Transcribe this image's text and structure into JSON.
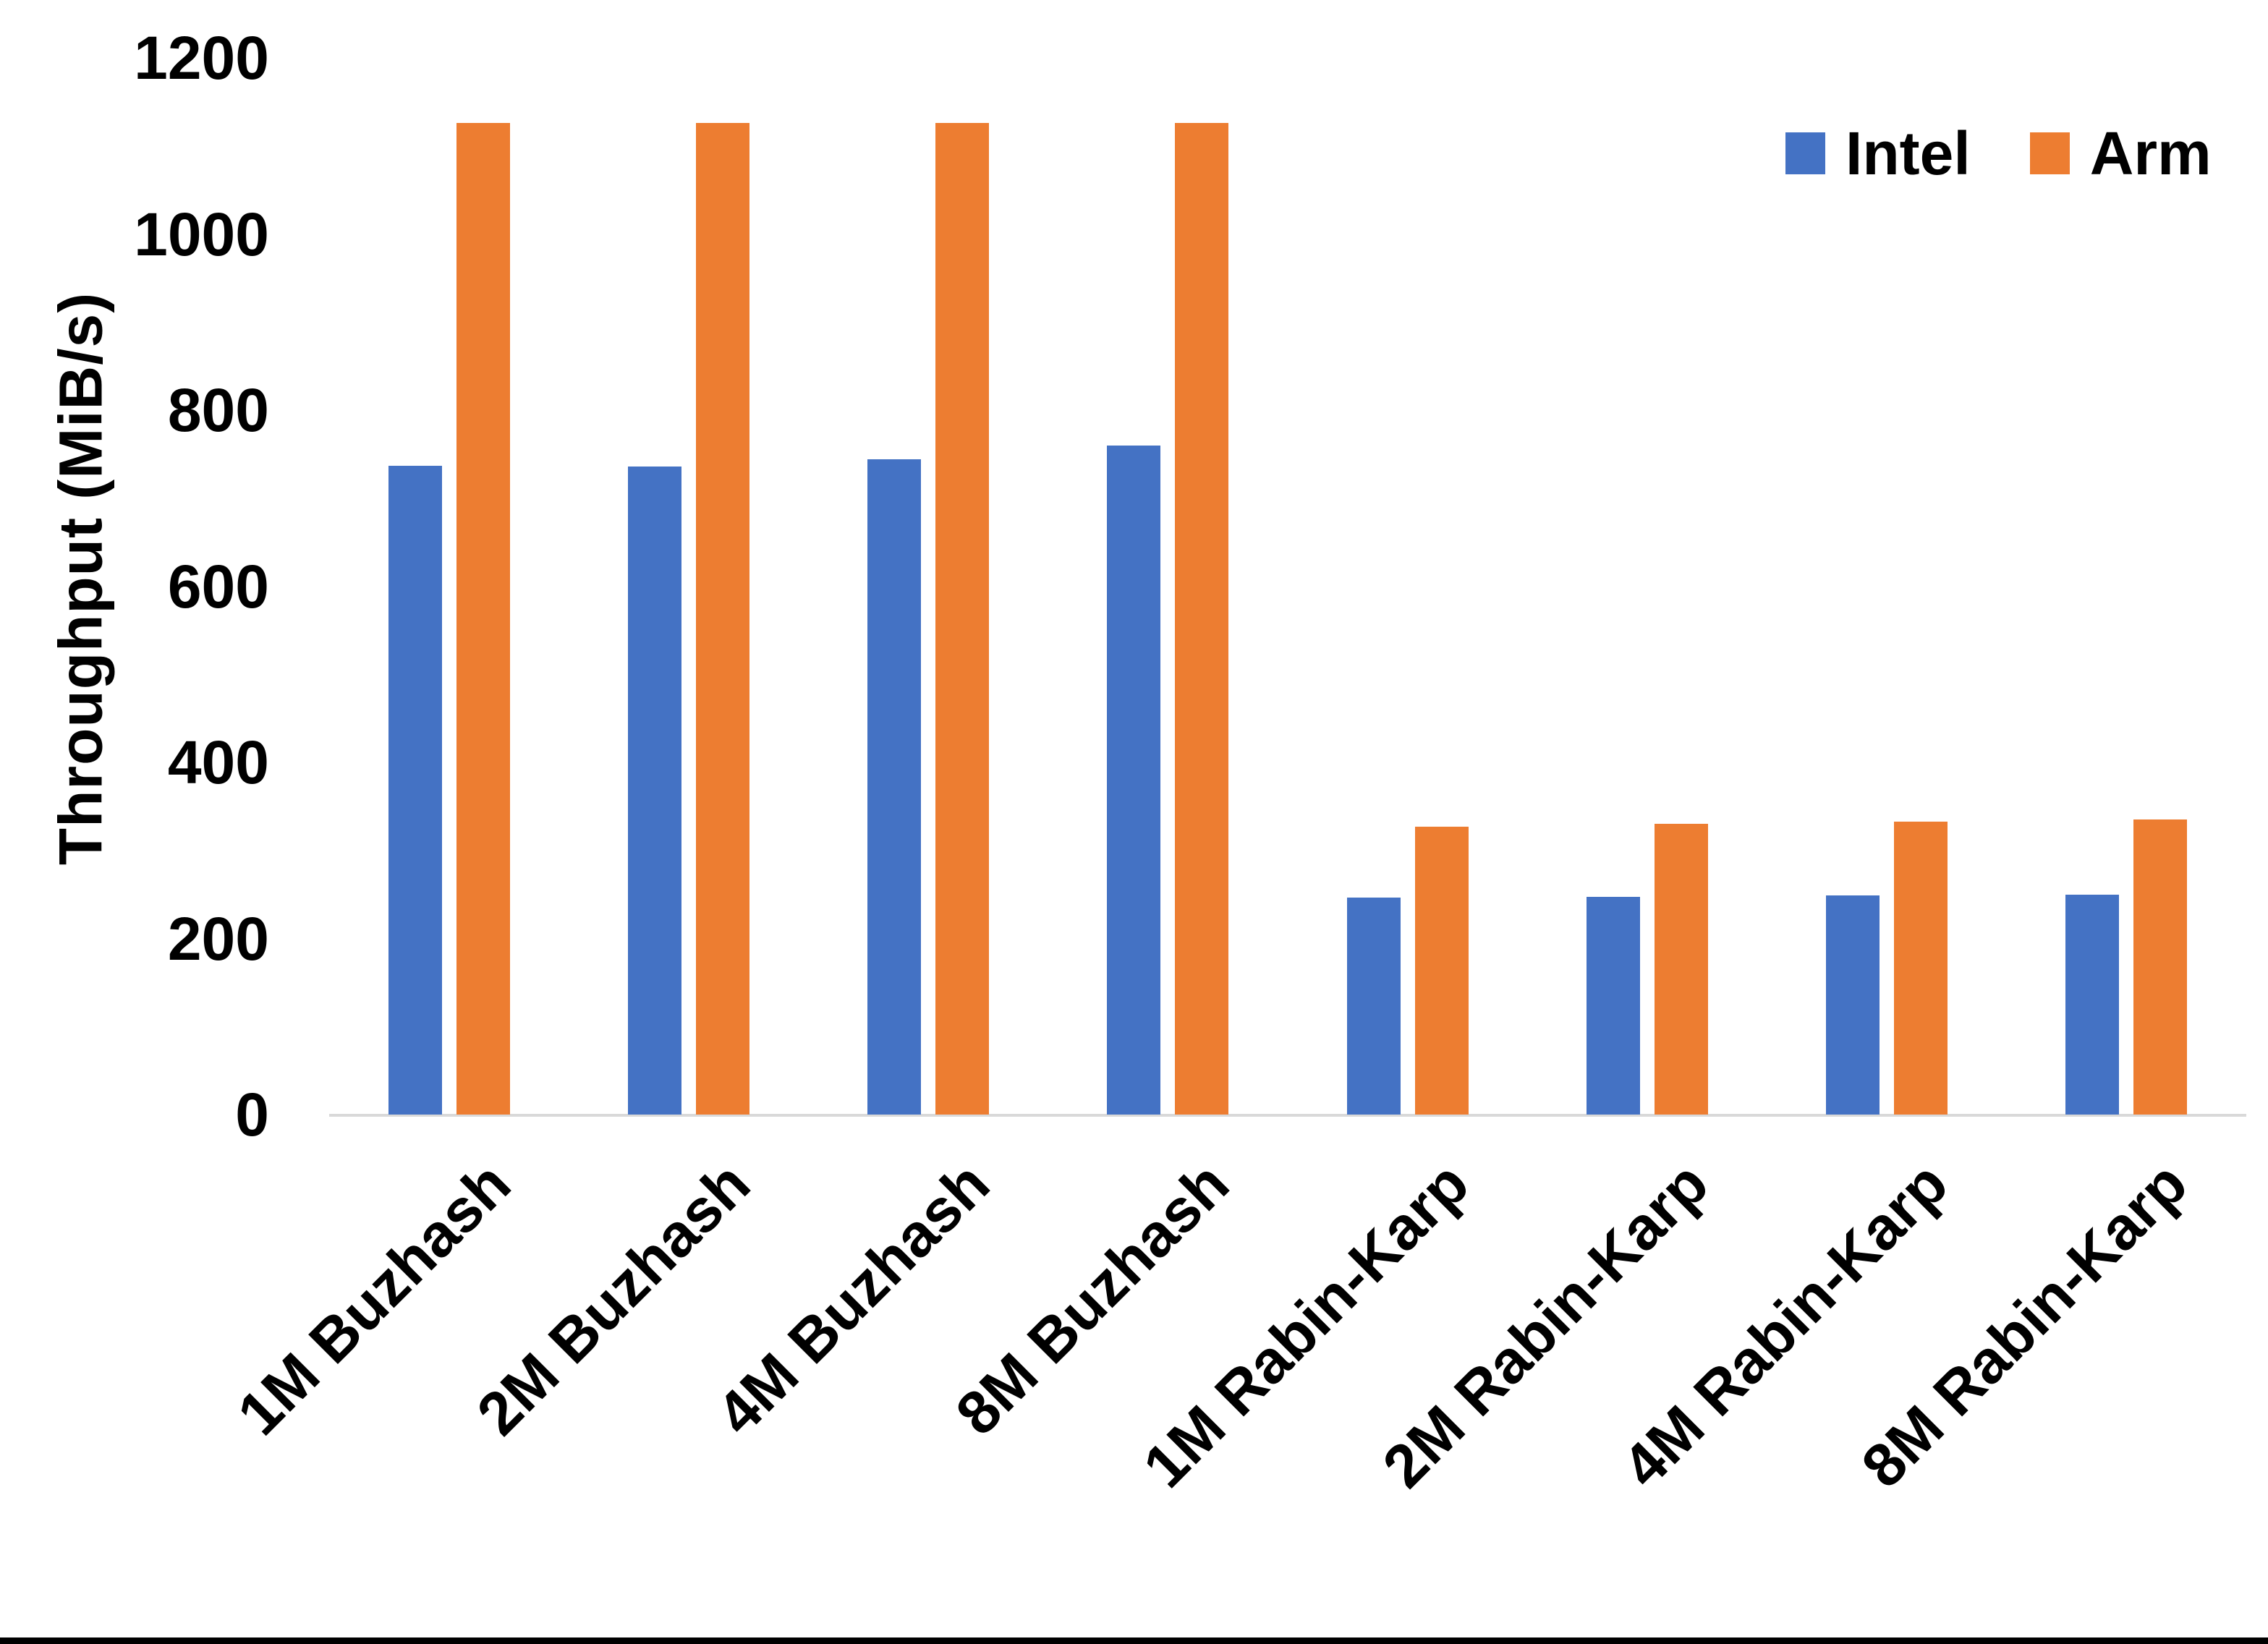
{
  "chart_data": {
    "type": "bar",
    "title": "",
    "xlabel": "",
    "ylabel": "Throughput (MiB/s)",
    "categories": [
      "1M Buzhash",
      "2M Buzhash",
      "4M Buzhash",
      "8M Buzhash",
      "1M Rabin-Karp",
      "2M Rabin-Karp",
      "4M Rabin-Karp",
      "8M Rabin-Karp"
    ],
    "series": [
      {
        "name": "Intel",
        "color": "#4472C4",
        "values": [
          737,
          736,
          744,
          760,
          246,
          247,
          249,
          250
        ]
      },
      {
        "name": "Arm",
        "color": "#ED7D31",
        "values": [
          1126,
          1126,
          1126,
          1126,
          327,
          330,
          333,
          335
        ]
      }
    ],
    "ylim": [
      0,
      1200
    ],
    "yticks": [
      0,
      200,
      400,
      600,
      800,
      1000,
      1200
    ],
    "grid": false,
    "legend_position": "top-right",
    "x_label_rotation_deg": -45
  },
  "colors": {
    "background": "#FFFFFF",
    "text": "#000000",
    "axis_line": "#D9D9D9",
    "bottom_bar": "#000000"
  }
}
